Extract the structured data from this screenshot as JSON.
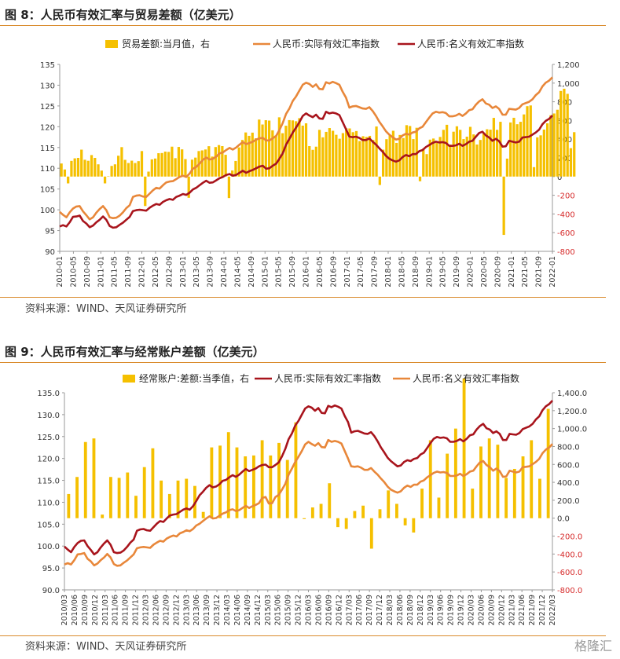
{
  "figures": [
    {
      "title": "图 8：人民币有效汇率与贸易差额（亿美元）",
      "source": "资料来源：WIND、天风证券研究所"
    },
    {
      "title": "图 9：人民币有效汇率与经常账户差额（亿美元）",
      "source": "资料来源：WIND、天风证券研究所"
    }
  ],
  "watermark": "格隆汇",
  "chart_data": [
    {
      "type": "bar+line",
      "title": "",
      "colors": {
        "bar": "#f5c000",
        "line_light": "#e8873a",
        "line_dark": "#a8141c",
        "axis_right_negative": "#d62b2b"
      },
      "legend": [
        "贸易差额:当月值，右",
        "人民币:实际有效汇率指数",
        "人民币:名义有效汇率指数"
      ],
      "y_left": {
        "min": 90,
        "max": 135,
        "step": 5,
        "ticks": [
          "90",
          "95",
          "100",
          "105",
          "110",
          "115",
          "120",
          "125",
          "130",
          "135"
        ]
      },
      "y_right": {
        "min": -800,
        "max": 1200,
        "step": 200,
        "ticks": [
          "-800",
          "-600",
          "-400",
          "-200",
          "0",
          "200",
          "400",
          "600",
          "800",
          "1,000",
          "1,200"
        ]
      },
      "x_ticks": [
        "2010-01",
        "2010-05",
        "2010-09",
        "2011-01",
        "2011-05",
        "2011-09",
        "2012-01",
        "2012-05",
        "2012-09",
        "2013-01",
        "2013-05",
        "2013-09",
        "2014-01",
        "2014-05",
        "2014-09",
        "2015-01",
        "2015-05",
        "2015-09",
        "2016-01",
        "2016-05",
        "2016-09",
        "2017-01",
        "2017-05",
        "2017-09",
        "2018-01",
        "2018-05",
        "2018-09",
        "2019-01",
        "2019-05",
        "2019-09",
        "2020-01",
        "2020-05",
        "2020-09",
        "2021-01",
        "2021-05",
        "2021-09",
        "2022-01"
      ],
      "start": "2010-01",
      "months": 147,
      "trade_balance": [
        140,
        76,
        -73,
        168,
        195,
        200,
        288,
        180,
        169,
        230,
        200,
        131,
        64,
        -73,
        4,
        114,
        131,
        223,
        315,
        179,
        145,
        170,
        145,
        165,
        273,
        -315,
        53,
        184,
        193,
        250,
        252,
        267,
        264,
        320,
        197,
        317,
        291,
        187,
        -227,
        181,
        203,
        273,
        280,
        290,
        325,
        214,
        316,
        337,
        326,
        233,
        -230,
        65,
        167,
        312,
        392,
        472,
        436,
        470,
        410,
        610,
        557,
        603,
        599,
        495,
        440,
        634,
        464,
        544,
        604,
        601,
        592,
        625,
        545,
        570,
        326,
        286,
        320,
        500,
        420,
        478,
        519,
        490,
        447,
        405,
        465,
        517,
        515,
        475,
        487,
        380,
        432,
        424,
        436,
        392,
        536,
        -90,
        288,
        400,
        442,
        490,
        360,
        445,
        412,
        550,
        541,
        401,
        522,
        -50,
        300,
        240,
        395,
        407,
        360,
        424,
        500,
        554,
        342,
        480,
        538,
        500,
        401,
        427,
        532,
        451,
        343,
        392,
        460,
        506,
        502,
        628,
        500,
        586,
        -624,
        192,
        579,
        629,
        560,
        586,
        665,
        753,
        761,
        101,
        420,
        441,
        503,
        570,
        656,
        675,
        715,
        916,
        940,
        885,
        304,
        475
      ],
      "reer": [
        99.5,
        98.8,
        98.2,
        99.4,
        100.3,
        100.8,
        100.9,
        99.6,
        98.7,
        97.7,
        98.2,
        99.3,
        100.2,
        100.9,
        99.9,
        98.2,
        98.0,
        98.1,
        98.6,
        99.4,
        100.4,
        101.1,
        103.1,
        103.4,
        103.5,
        103.2,
        103.1,
        103.9,
        104.7,
        105.3,
        105.1,
        105.9,
        106.6,
        106.8,
        106.9,
        107.4,
        107.9,
        108.2,
        107.9,
        108.7,
        109.9,
        110.3,
        111.1,
        112.0,
        112.6,
        112.1,
        112.3,
        112.8,
        113.6,
        113.8,
        114.4,
        114.9,
        114.5,
        115.0,
        115.7,
        116.3,
        115.8,
        116.1,
        116.4,
        116.9,
        117.2,
        117.3,
        116.7,
        116.7,
        117.2,
        117.8,
        119.2,
        120.9,
        123.1,
        124.4,
        126.2,
        127.3,
        128.7,
        130.1,
        130.6,
        130.3,
        129.6,
        130.2,
        129.1,
        129.0,
        130.7,
        130.4,
        130.8,
        130.5,
        130.1,
        128.4,
        127.0,
        124.6,
        124.9,
        125.0,
        124.7,
        124.4,
        124.3,
        124.7,
        123.8,
        122.6,
        121.2,
        120.1,
        118.9,
        118.1,
        117.5,
        116.9,
        117.1,
        117.9,
        118.3,
        118.1,
        118.6,
        118.8,
        119.6,
        120.0,
        121.1,
        122.2,
        123.2,
        123.6,
        123.4,
        123.5,
        123.3,
        122.5,
        122.5,
        122.7,
        123.1,
        122.6,
        123.2,
        124.0,
        124.2,
        125.3,
        126.1,
        126.6,
        125.6,
        125.3,
        124.5,
        124.9,
        124.3,
        122.9,
        122.9,
        124.3,
        124.2,
        124.1,
        124.5,
        125.4,
        125.7,
        126.0,
        126.6,
        127.6,
        128.3,
        129.7,
        130.6,
        131.1,
        131.9
      ],
      "neer": [
        96.0,
        96.3,
        96.0,
        97.0,
        98.3,
        98.4,
        98.6,
        97.3,
        96.7,
        95.8,
        96.2,
        97.0,
        97.6,
        98.4,
        97.6,
        96.1,
        95.7,
        95.8,
        96.4,
        96.9,
        97.6,
        98.3,
        99.7,
        99.9,
        100.0,
        99.9,
        99.8,
        100.5,
        101.0,
        101.4,
        101.2,
        101.9,
        102.3,
        102.6,
        102.4,
        103.1,
        103.4,
        103.8,
        103.6,
        104.1,
        104.9,
        105.3,
        105.9,
        106.5,
        107.0,
        106.5,
        106.6,
        107.1,
        107.6,
        107.9,
        108.4,
        108.6,
        108.2,
        108.4,
        108.9,
        109.4,
        108.9,
        109.3,
        109.6,
        110.0,
        110.4,
        110.6,
        109.9,
        110.0,
        110.6,
        111.1,
        112.3,
        113.6,
        115.7,
        117.1,
        118.6,
        119.8,
        121.1,
        122.6,
        123.2,
        122.7,
        122.3,
        122.9,
        122.0,
        121.9,
        123.6,
        123.2,
        123.4,
        123.2,
        122.8,
        121.1,
        119.4,
        117.6,
        117.5,
        117.6,
        117.3,
        116.8,
        116.8,
        117.2,
        116.4,
        115.7,
        114.8,
        114.0,
        113.0,
        112.3,
        111.9,
        111.6,
        111.9,
        112.7,
        113.2,
        112.9,
        113.4,
        113.4,
        114.1,
        114.4,
        115.1,
        115.6,
        116.1,
        116.4,
        116.2,
        116.3,
        116.1,
        115.4,
        115.4,
        115.5,
        115.9,
        115.4,
        115.8,
        116.4,
        116.6,
        117.6,
        118.5,
        118.8,
        117.9,
        117.4,
        116.6,
        117.1,
        116.5,
        115.2,
        115.3,
        116.6,
        116.4,
        116.2,
        116.4,
        117.4,
        117.5,
        117.6,
        118.1,
        118.6,
        119.3,
        120.6,
        121.4,
        121.9,
        122.7
      ]
    },
    {
      "type": "bar+line",
      "title": "",
      "colors": {
        "bar": "#f5c000",
        "line_dark": "#a8141c",
        "line_light": "#e8873a",
        "axis_right_negative": "#d62b2b"
      },
      "legend": [
        "经常账户:差额:当季值，右",
        "人民币:实际有效汇率指数",
        "人民币:名义有效汇率指数"
      ],
      "y_left": {
        "min": 90,
        "max": 135,
        "step": 5,
        "ticks": [
          "90.0",
          "95.0",
          "100.0",
          "105.0",
          "110.0",
          "115.0",
          "120.0",
          "125.0",
          "130.0",
          "135.0"
        ]
      },
      "y_right": {
        "min": -800,
        "max": 1400,
        "step": 200,
        "ticks": [
          "-800.0",
          "-600.0",
          "-400.0",
          "-200.0",
          "0.0",
          "200.0",
          "400.0",
          "600.0",
          "800.0",
          "1,000.0",
          "1,200.0",
          "1,400.0"
        ]
      },
      "x_ticks": [
        "2010/03",
        "2010/06",
        "2010/09",
        "2010/12",
        "2011/03",
        "2011/06",
        "2011/09",
        "2011/12",
        "2012/03",
        "2012/06",
        "2012/09",
        "2012/12",
        "2013/03",
        "2013/06",
        "2013/09",
        "2013/12",
        "2014/03",
        "2014/06",
        "2014/09",
        "2014/12",
        "2015/03",
        "2015/06",
        "2015/09",
        "2015/12",
        "2016/03",
        "2016/06",
        "2016/09",
        "2016/12",
        "2017/03",
        "2017/06",
        "2017/09",
        "2017/12",
        "2018/03",
        "2018/06",
        "2018/09",
        "2018/12",
        "2019/03",
        "2019/06",
        "2019/09",
        "2019/12",
        "2020/03",
        "2020/06",
        "2020/09",
        "2020/12",
        "2021/03",
        "2021/06",
        "2021/09",
        "2021/12",
        "2022/03"
      ],
      "quarters": 49,
      "current_account": [
        270,
        460,
        850,
        890,
        40,
        460,
        450,
        510,
        250,
        570,
        780,
        420,
        270,
        420,
        440,
        360,
        70,
        790,
        810,
        960,
        790,
        690,
        700,
        870,
        700,
        840,
        650,
        1070,
        -10,
        120,
        160,
        390,
        -100,
        -120,
        80,
        140,
        -340,
        100,
        310,
        160,
        -80,
        -160,
        330,
        870,
        230,
        720,
        1000,
        1560,
        330,
        800,
        890,
        820,
        450,
        550,
        690,
        870,
        440,
        1220
      ],
      "reer_months": 147,
      "reer": [],
      "neer": []
    }
  ]
}
